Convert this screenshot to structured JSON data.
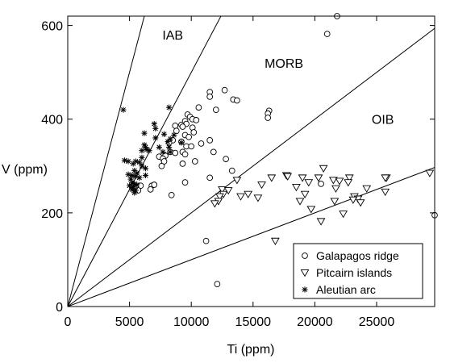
{
  "chart_data": {
    "type": "scatter",
    "title": "",
    "xlabel": "Ti (ppm)",
    "ylabel": "V (ppm)",
    "xlim": [
      0,
      29700
    ],
    "ylim": [
      0,
      620
    ],
    "x_ticks": [
      0,
      5000,
      10000,
      15000,
      20000,
      25000
    ],
    "y_ticks": [
      0,
      200,
      400,
      600
    ],
    "grid": false,
    "legend_position": "bottom-right",
    "reference_lines": [
      {
        "ti_v": 10
      },
      {
        "ti_v": 20
      },
      {
        "ti_v": 50
      },
      {
        "ti_v": 100
      }
    ],
    "region_labels": [
      {
        "text": "IAB",
        "x": 8500,
        "y": 570
      },
      {
        "text": "MORB",
        "x": 17500,
        "y": 510
      },
      {
        "text": "OIB",
        "x": 25500,
        "y": 390
      }
    ],
    "series": [
      {
        "name": "Galapagos ridge",
        "marker": "circle",
        "points": [
          [
            21800,
            620
          ],
          [
            21000,
            582
          ],
          [
            12700,
            462
          ],
          [
            11500,
            458
          ],
          [
            11500,
            448
          ],
          [
            13400,
            442
          ],
          [
            13700,
            440
          ],
          [
            12000,
            420
          ],
          [
            16300,
            418
          ],
          [
            16200,
            412
          ],
          [
            16200,
            403
          ],
          [
            10600,
            425
          ],
          [
            9700,
            410
          ],
          [
            9900,
            405
          ],
          [
            10100,
            400
          ],
          [
            10400,
            398
          ],
          [
            9500,
            396
          ],
          [
            9600,
            390
          ],
          [
            9200,
            388
          ],
          [
            9300,
            384
          ],
          [
            10100,
            382
          ],
          [
            8700,
            386
          ],
          [
            8800,
            375
          ],
          [
            10200,
            372
          ],
          [
            9500,
            366
          ],
          [
            9800,
            362
          ],
          [
            11500,
            355
          ],
          [
            8500,
            355
          ],
          [
            9200,
            352
          ],
          [
            8200,
            350
          ],
          [
            10800,
            348
          ],
          [
            9600,
            342
          ],
          [
            10000,
            342
          ],
          [
            11800,
            330
          ],
          [
            9300,
            330
          ],
          [
            8300,
            330
          ],
          [
            8700,
            328
          ],
          [
            9500,
            325
          ],
          [
            7900,
            322
          ],
          [
            7400,
            320
          ],
          [
            7700,
            316
          ],
          [
            7800,
            310
          ],
          [
            10300,
            310
          ],
          [
            9300,
            305
          ],
          [
            7600,
            300
          ],
          [
            12800,
            315
          ],
          [
            13300,
            290
          ],
          [
            11500,
            275
          ],
          [
            9500,
            265
          ],
          [
            5500,
            255
          ],
          [
            5900,
            258
          ],
          [
            6800,
            258
          ],
          [
            7000,
            260
          ],
          [
            6700,
            250
          ],
          [
            5700,
            248
          ],
          [
            8400,
            238
          ],
          [
            20500,
            262
          ],
          [
            29700,
            195
          ],
          [
            11200,
            140
          ],
          [
            12100,
            48
          ]
        ]
      },
      {
        "name": "Pitcairn islands",
        "marker": "triangle-down",
        "points": [
          [
            20700,
            295
          ],
          [
            17700,
            280
          ],
          [
            17800,
            278
          ],
          [
            16500,
            275
          ],
          [
            19000,
            275
          ],
          [
            20300,
            275
          ],
          [
            22800,
            275
          ],
          [
            25800,
            275
          ],
          [
            25700,
            275
          ],
          [
            29300,
            285
          ],
          [
            13700,
            270
          ],
          [
            21500,
            270
          ],
          [
            22000,
            268
          ],
          [
            22700,
            265
          ],
          [
            19500,
            265
          ],
          [
            15700,
            260
          ],
          [
            18500,
            255
          ],
          [
            12500,
            250
          ],
          [
            13000,
            248
          ],
          [
            21700,
            252
          ],
          [
            24200,
            252
          ],
          [
            12600,
            240
          ],
          [
            14600,
            240
          ],
          [
            19200,
            240
          ],
          [
            25700,
            245
          ],
          [
            12300,
            235
          ],
          [
            14000,
            235
          ],
          [
            15400,
            232
          ],
          [
            23200,
            235
          ],
          [
            23500,
            230
          ],
          [
            23100,
            228
          ],
          [
            12200,
            225
          ],
          [
            18800,
            225
          ],
          [
            21600,
            225
          ],
          [
            23700,
            222
          ],
          [
            11900,
            220
          ],
          [
            19700,
            208
          ],
          [
            22300,
            198
          ],
          [
            20500,
            182
          ],
          [
            16800,
            140
          ]
        ]
      },
      {
        "name": "Aleutian arc",
        "marker": "asterisk",
        "points": [
          [
            4500,
            420
          ],
          [
            8200,
            425
          ],
          [
            7000,
            390
          ],
          [
            7100,
            380
          ],
          [
            6200,
            370
          ],
          [
            7800,
            368
          ],
          [
            8600,
            366
          ],
          [
            7100,
            360
          ],
          [
            8300,
            358
          ],
          [
            8100,
            352
          ],
          [
            9200,
            350
          ],
          [
            6200,
            345
          ],
          [
            6300,
            340
          ],
          [
            7400,
            340
          ],
          [
            8200,
            340
          ],
          [
            6400,
            335
          ],
          [
            6000,
            333
          ],
          [
            6600,
            333
          ],
          [
            7700,
            330
          ],
          [
            8300,
            330
          ],
          [
            6000,
            318
          ],
          [
            4600,
            312
          ],
          [
            4900,
            310
          ],
          [
            5500,
            310
          ],
          [
            5800,
            308
          ],
          [
            5300,
            305
          ],
          [
            6000,
            300
          ],
          [
            6300,
            295
          ],
          [
            5400,
            290
          ],
          [
            5600,
            285
          ],
          [
            4900,
            282
          ],
          [
            5200,
            280
          ],
          [
            6300,
            280
          ],
          [
            5500,
            278
          ],
          [
            5800,
            275
          ],
          [
            5100,
            272
          ],
          [
            5200,
            265
          ],
          [
            5400,
            262
          ],
          [
            5600,
            260
          ],
          [
            5000,
            258
          ],
          [
            5300,
            255
          ],
          [
            5200,
            250
          ],
          [
            5500,
            248
          ],
          [
            5400,
            243
          ]
        ]
      }
    ]
  }
}
